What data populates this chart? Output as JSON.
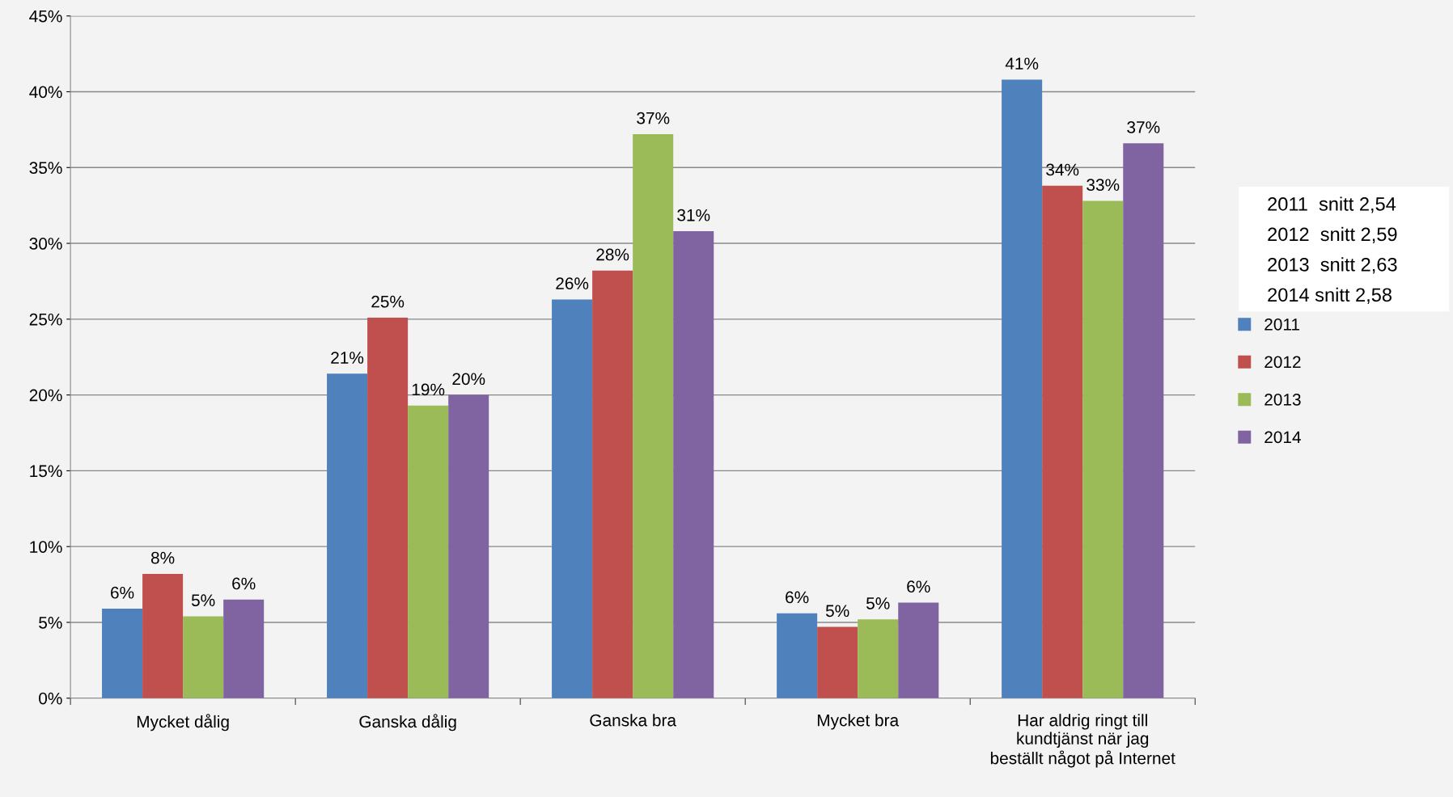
{
  "chart_data": {
    "type": "bar",
    "categories": [
      "Mycket dålig",
      "Ganska dålig",
      "Ganska bra",
      "Mycket bra",
      "Har aldrig ringt till\nkundtjänst när jag\nbeställt något på Internet"
    ],
    "series": [
      {
        "name": "2011",
        "color": "#4f81bd",
        "values": [
          5.9,
          21.4,
          26.3,
          5.6,
          40.8
        ],
        "value_labels": [
          "6%",
          "21%",
          "26%",
          "6%",
          "41%"
        ]
      },
      {
        "name": "2012",
        "color": "#c0504d",
        "values": [
          8.2,
          25.1,
          28.2,
          4.7,
          33.8
        ],
        "value_labels": [
          "8%",
          "25%",
          "28%",
          "5%",
          "34%"
        ]
      },
      {
        "name": "2013",
        "color": "#9bbb59",
        "values": [
          5.4,
          19.3,
          37.2,
          5.2,
          32.8
        ],
        "value_labels": [
          "5%",
          "19%",
          "37%",
          "5%",
          "33%"
        ]
      },
      {
        "name": "2014",
        "color": "#8064a2",
        "values": [
          6.5,
          20.0,
          30.8,
          6.3,
          36.6
        ],
        "value_labels": [
          "6%",
          "20%",
          "31%",
          "6%",
          "37%"
        ]
      }
    ],
    "ylim": [
      0,
      45
    ],
    "yticks": [
      {
        "value": 0,
        "label": "0%"
      },
      {
        "value": 5,
        "label": "5%"
      },
      {
        "value": 10,
        "label": "10%"
      },
      {
        "value": 15,
        "label": "15%"
      },
      {
        "value": 20,
        "label": "20%"
      },
      {
        "value": 25,
        "label": "25%"
      },
      {
        "value": 30,
        "label": "30%"
      },
      {
        "value": 35,
        "label": "35%"
      },
      {
        "value": 40,
        "label": "40%"
      },
      {
        "value": 45,
        "label": "45%"
      }
    ],
    "grid": "y",
    "legend": "right",
    "annotations": [
      "2011  snitt 2,54",
      "2012  snitt 2,59",
      "2013  snitt 2,63",
      "2014 snitt 2,58"
    ]
  }
}
